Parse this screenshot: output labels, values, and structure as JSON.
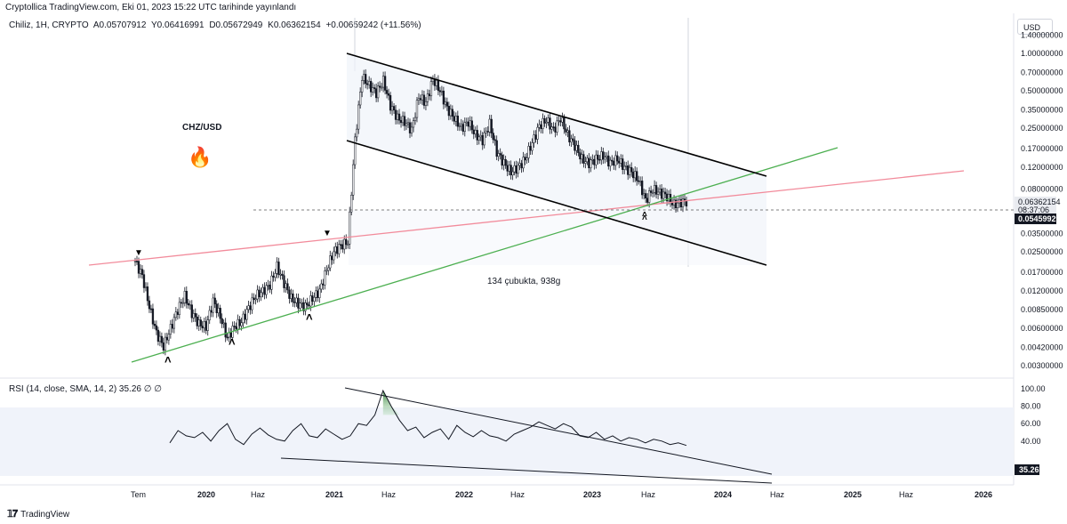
{
  "header": {
    "text": "Cryptollica TradingView.com, Eki 01, 2023 15:22 UTC tarihinde yayınlandı"
  },
  "legend": {
    "symbol": "Chiliz, 1H, CRYPTO",
    "open": "A0.05707912",
    "high": "Y0.06416991",
    "low": "D0.05672949",
    "close": "K0.06362154",
    "change": "+0.00659242 (+11.56%)"
  },
  "currency": "USD",
  "rsi_legend": "RSI (14, close, SMA, 14, 2)  35.26  ∅  ∅",
  "footer": {
    "brand": "TradingView"
  },
  "annotations": {
    "pair": "CHZ/USD",
    "measure": "134 çubukta, 938g"
  },
  "colors": {
    "up": "#131722",
    "down": "#131722",
    "green_line": "#4caf50",
    "red_line": "#f28b9b",
    "channel": "#000000",
    "rsi_fill": "#4caf50",
    "band": "#f0f3fa"
  },
  "chart_data": [
    {
      "type": "candlestick",
      "title": "",
      "scale": "log",
      "price_ticks": [
        "1.40000000",
        "1.00000000",
        "0.70000000",
        "0.50000000",
        "0.35000000",
        "0.25000000",
        "0.17000000",
        "0.12000000",
        "0.08000000",
        "0.03500000",
        "0.02500000",
        "0.01700000",
        "0.01200000",
        "0.00850000",
        "0.00600000",
        "0.00420000",
        "0.00300000"
      ],
      "price_tick_values": [
        1.4,
        1.0,
        0.7,
        0.5,
        0.35,
        0.25,
        0.17,
        0.12,
        0.08,
        0.035,
        0.025,
        0.017,
        0.012,
        0.0085,
        0.006,
        0.0042,
        0.003
      ],
      "last_price": "0.06362154",
      "countdown": "08:37:06",
      "level_label": "0.05459929",
      "x_ticks": [
        "Tem",
        "2020",
        "Haz",
        "2021",
        "Haz",
        "2022",
        "Haz",
        "2023",
        "Haz",
        "2024",
        "Haz",
        "2025",
        "Haz",
        "2026"
      ],
      "x_tick_bold": [
        false,
        true,
        false,
        true,
        false,
        true,
        false,
        true,
        false,
        true,
        false,
        true,
        false,
        true
      ],
      "close_path": [
        0.021,
        0.016,
        0.009,
        0.0055,
        0.0043,
        0.006,
        0.0085,
        0.011,
        0.008,
        0.0065,
        0.0062,
        0.01,
        0.0075,
        0.005,
        0.0062,
        0.0068,
        0.0088,
        0.011,
        0.012,
        0.0135,
        0.019,
        0.014,
        0.0105,
        0.0095,
        0.009,
        0.0105,
        0.012,
        0.018,
        0.025,
        0.028,
        0.03,
        0.2,
        0.65,
        0.55,
        0.48,
        0.6,
        0.38,
        0.3,
        0.28,
        0.24,
        0.45,
        0.4,
        0.62,
        0.5,
        0.36,
        0.3,
        0.25,
        0.28,
        0.22,
        0.2,
        0.27,
        0.16,
        0.13,
        0.11,
        0.12,
        0.14,
        0.19,
        0.26,
        0.29,
        0.24,
        0.3,
        0.22,
        0.18,
        0.14,
        0.13,
        0.14,
        0.15,
        0.13,
        0.14,
        0.12,
        0.11,
        0.095,
        0.065,
        0.08,
        0.075,
        0.07,
        0.06,
        0.063
      ]
    },
    {
      "type": "line",
      "title": "",
      "ylim": [
        0,
        100
      ],
      "y_ticks": [
        "100.00",
        "80.00",
        "60.00",
        "40.00"
      ],
      "y_tick_values": [
        100,
        80,
        60,
        40
      ],
      "band": [
        30,
        70
      ],
      "current": "35.26",
      "values": [
        38,
        52,
        46,
        44,
        50,
        40,
        52,
        60,
        42,
        36,
        48,
        55,
        47,
        42,
        40,
        52,
        60,
        46,
        44,
        54,
        48,
        42,
        46,
        60,
        58,
        70,
        98,
        80,
        64,
        52,
        56,
        44,
        50,
        54,
        42,
        58,
        50,
        45,
        52,
        46,
        44,
        40,
        48,
        52,
        56,
        62,
        58,
        54,
        60,
        56,
        46,
        44,
        50,
        42,
        46,
        40,
        44,
        42,
        38,
        42,
        40,
        36,
        38,
        35
      ]
    }
  ]
}
